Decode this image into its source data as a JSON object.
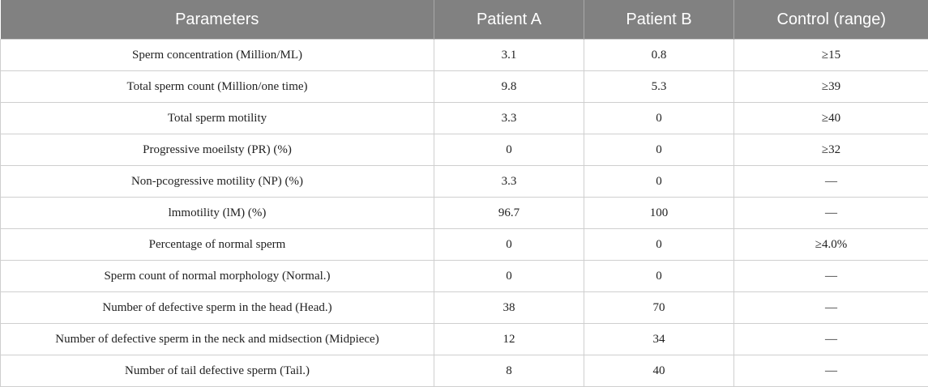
{
  "table": {
    "headers": [
      "Parameters",
      "Patient A",
      "Patient B",
      "Control (range)"
    ],
    "rows": [
      [
        "Sperm concentration (Million/ML)",
        "3.1",
        "0.8",
        "≥15"
      ],
      [
        "Total sperm count (Million/one time)",
        "9.8",
        "5.3",
        "≥39"
      ],
      [
        "Total sperm motility",
        "3.3",
        "0",
        "≥40"
      ],
      [
        "Progressive moeilsty (PR) (%)",
        "0",
        "0",
        "≥32"
      ],
      [
        "Non-pcogressive motility (NP) (%)",
        "3.3",
        "0",
        "—"
      ],
      [
        "lmmotility (lM) (%)",
        "96.7",
        "100",
        "—"
      ],
      [
        "Percentage of normal sperm",
        "0",
        "0",
        "≥4.0%"
      ],
      [
        "Sperm count of normal morphology (Normal.)",
        "0",
        "0",
        "—"
      ],
      [
        "Number of defective sperm in the head (Head.)",
        "38",
        "70",
        "—"
      ],
      [
        "Number of defective sperm in the neck and midsection (Midpiece)",
        "12",
        "34",
        "—"
      ],
      [
        "Number of tail defective sperm (Tail.)",
        "8",
        "40",
        "—"
      ]
    ]
  }
}
